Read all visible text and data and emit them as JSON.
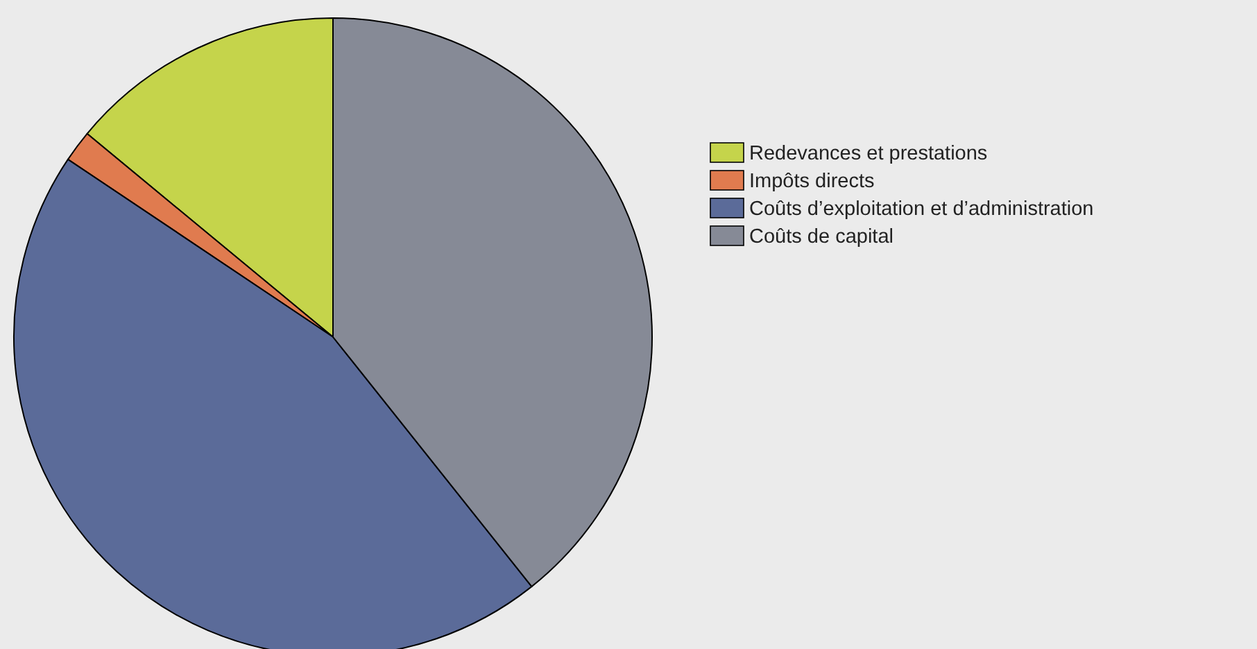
{
  "chart_data": {
    "type": "pie",
    "categories": [
      "Redevances et prestations",
      "Impôts directs",
      "Coûts d’exploitation et d’administration",
      "Coûts de capital"
    ],
    "values": [
      14.0,
      1.6,
      45.1,
      39.3
    ],
    "colors": [
      "#c5d44b",
      "#e07b4f",
      "#5b6b99",
      "#868a96"
    ],
    "legend": "right"
  }
}
